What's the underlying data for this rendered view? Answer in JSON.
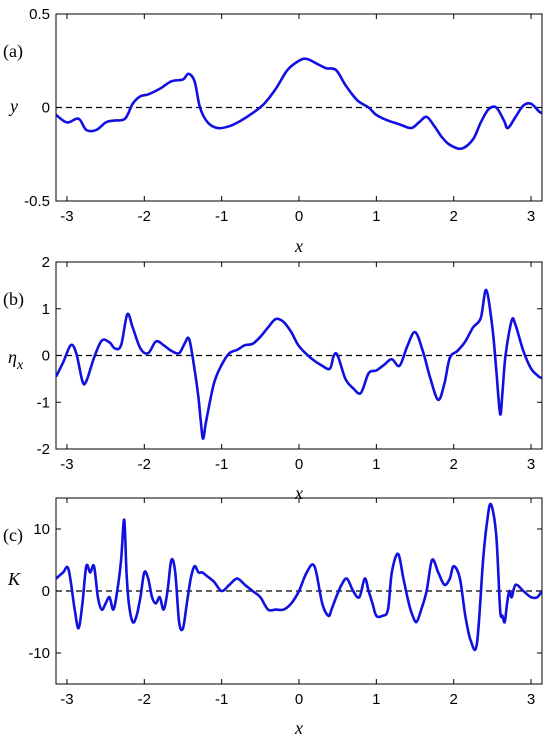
{
  "figure": {
    "panel_tags": [
      "(a)",
      "(b)",
      "(c)"
    ]
  },
  "chart_data": [
    {
      "type": "line",
      "panel": "(a)",
      "xlabel": "x",
      "ylabel": "y",
      "xlim": [
        -3.1416,
        3.1416
      ],
      "ylim": [
        -0.5,
        0.5
      ],
      "xticks": [
        -3,
        -2,
        -1,
        0,
        1,
        2,
        3
      ],
      "xtick_labels": [
        "-3",
        "-2",
        "-1",
        "0",
        "1",
        "2",
        "3"
      ],
      "yticks": [
        -0.5,
        0,
        0.5
      ],
      "ytick_labels": [
        "-0.5",
        "0",
        "0.5"
      ],
      "reference_line": 0,
      "color": "#1010e0",
      "series": [
        {
          "x": [
            -3.14,
            -3.0,
            -2.85,
            -2.75,
            -2.62,
            -2.5,
            -2.4,
            -2.25,
            -2.15,
            -2.05,
            -1.95,
            -1.8,
            -1.65,
            -1.5,
            -1.43,
            -1.35,
            -1.28,
            -1.18,
            -1.05,
            -0.9,
            -0.75,
            -0.6,
            -0.45,
            -0.3,
            -0.15,
            0.0,
            0.1,
            0.25,
            0.35,
            0.48,
            0.6,
            0.75,
            0.9,
            1.0,
            1.15,
            1.3,
            1.45,
            1.55,
            1.65,
            1.75,
            1.85,
            1.95,
            2.1,
            2.25,
            2.35,
            2.45,
            2.55,
            2.65,
            2.7,
            2.8,
            2.9,
            3.0,
            3.1,
            3.14
          ],
          "y": [
            -0.04,
            -0.08,
            -0.06,
            -0.12,
            -0.12,
            -0.08,
            -0.07,
            -0.06,
            0.02,
            0.06,
            0.07,
            0.1,
            0.14,
            0.15,
            0.18,
            0.14,
            0.0,
            -0.08,
            -0.11,
            -0.1,
            -0.07,
            -0.03,
            0.02,
            0.1,
            0.2,
            0.25,
            0.26,
            0.23,
            0.21,
            0.2,
            0.12,
            0.04,
            0.0,
            -0.04,
            -0.07,
            -0.09,
            -0.11,
            -0.08,
            -0.05,
            -0.1,
            -0.16,
            -0.2,
            -0.22,
            -0.17,
            -0.08,
            -0.01,
            0.0,
            -0.07,
            -0.11,
            -0.05,
            0.01,
            0.02,
            -0.02,
            -0.03
          ]
        }
      ]
    },
    {
      "type": "line",
      "panel": "(b)",
      "xlabel": "x",
      "ylabel": "ηx",
      "xlim": [
        -3.1416,
        3.1416
      ],
      "ylim": [
        -2,
        2
      ],
      "xticks": [
        -3,
        -2,
        -1,
        0,
        1,
        2,
        3
      ],
      "xtick_labels": [
        "-3",
        "-2",
        "-1",
        "0",
        "1",
        "2",
        "3"
      ],
      "yticks": [
        -2,
        -1,
        0,
        1,
        2
      ],
      "ytick_labels": [
        "-2",
        "-1",
        "0",
        "1",
        "2"
      ],
      "reference_line": 0,
      "color": "#1010e0",
      "series": [
        {
          "x": [
            -3.14,
            -3.05,
            -2.95,
            -2.88,
            -2.8,
            -2.75,
            -2.65,
            -2.55,
            -2.45,
            -2.38,
            -2.3,
            -2.22,
            -2.15,
            -2.05,
            -1.95,
            -1.85,
            -1.75,
            -1.65,
            -1.55,
            -1.48,
            -1.42,
            -1.35,
            -1.3,
            -1.27,
            -1.24,
            -1.2,
            -1.1,
            -1.0,
            -0.9,
            -0.8,
            -0.7,
            -0.6,
            -0.5,
            -0.4,
            -0.3,
            -0.2,
            -0.1,
            0.0,
            0.15,
            0.3,
            0.4,
            0.45,
            0.5,
            0.6,
            0.7,
            0.8,
            0.9,
            1.0,
            1.1,
            1.2,
            1.3,
            1.4,
            1.5,
            1.6,
            1.7,
            1.8,
            1.88,
            1.95,
            2.05,
            2.15,
            2.25,
            2.35,
            2.42,
            2.5,
            2.55,
            2.6,
            2.63,
            2.67,
            2.75,
            2.8,
            2.9,
            3.0,
            3.1,
            3.14
          ],
          "y": [
            -0.45,
            -0.15,
            0.22,
            0.05,
            -0.55,
            -0.55,
            -0.05,
            0.32,
            0.28,
            0.15,
            0.22,
            0.88,
            0.6,
            0.15,
            0.05,
            0.3,
            0.22,
            0.1,
            0.05,
            0.25,
            0.35,
            -0.3,
            -0.9,
            -1.4,
            -1.78,
            -1.4,
            -0.6,
            -0.2,
            0.05,
            0.12,
            0.22,
            0.25,
            0.4,
            0.6,
            0.78,
            0.72,
            0.5,
            0.2,
            -0.05,
            -0.22,
            -0.28,
            0.0,
            0.0,
            -0.5,
            -0.7,
            -0.8,
            -0.38,
            -0.32,
            -0.2,
            -0.08,
            -0.22,
            0.2,
            0.5,
            0.1,
            -0.5,
            -0.95,
            -0.6,
            -0.05,
            0.1,
            0.3,
            0.6,
            0.8,
            1.4,
            0.6,
            -0.3,
            -1.25,
            -0.8,
            0.0,
            0.75,
            0.65,
            0.1,
            -0.28,
            -0.45,
            -0.48
          ]
        }
      ]
    },
    {
      "type": "line",
      "panel": "(c)",
      "xlabel": "x",
      "ylabel": "K",
      "xlim": [
        -3.1416,
        3.1416
      ],
      "ylim": [
        -15,
        15
      ],
      "xticks": [
        -3,
        -2,
        -1,
        0,
        1,
        2,
        3
      ],
      "xtick_labels": [
        "-3",
        "-2",
        "-1",
        "0",
        "1",
        "2",
        "3"
      ],
      "yticks": [
        -10,
        0,
        10
      ],
      "ytick_labels": [
        "-10",
        "0",
        "10"
      ],
      "reference_line": 0,
      "color": "#1010e0",
      "series": [
        {
          "x": [
            -3.14,
            -3.05,
            -2.98,
            -2.9,
            -2.85,
            -2.8,
            -2.75,
            -2.7,
            -2.65,
            -2.6,
            -2.55,
            -2.5,
            -2.45,
            -2.4,
            -2.35,
            -2.3,
            -2.26,
            -2.23,
            -2.2,
            -2.15,
            -2.1,
            -2.05,
            -2.0,
            -1.95,
            -1.9,
            -1.85,
            -1.8,
            -1.75,
            -1.7,
            -1.65,
            -1.6,
            -1.55,
            -1.5,
            -1.45,
            -1.4,
            -1.35,
            -1.3,
            -1.25,
            -1.2,
            -1.1,
            -1.0,
            -0.9,
            -0.8,
            -0.7,
            -0.6,
            -0.5,
            -0.4,
            -0.3,
            -0.2,
            -0.1,
            0.0,
            0.1,
            0.2,
            0.3,
            0.38,
            0.42,
            0.48,
            0.55,
            0.62,
            0.7,
            0.78,
            0.85,
            0.9,
            0.95,
            1.0,
            1.08,
            1.15,
            1.2,
            1.28,
            1.35,
            1.42,
            1.47,
            1.52,
            1.58,
            1.65,
            1.72,
            1.8,
            1.88,
            1.95,
            2.0,
            2.08,
            2.15,
            2.22,
            2.3,
            2.38,
            2.43,
            2.48,
            2.55,
            2.6,
            2.63,
            2.66,
            2.69,
            2.72,
            2.75,
            2.8,
            2.9,
            3.0,
            3.08,
            3.14
          ],
          "y": [
            2,
            3,
            3.5,
            -3,
            -6,
            -2,
            4,
            3,
            4,
            -1,
            -3,
            -2,
            -1,
            -3,
            0,
            5,
            11.5,
            3,
            -2,
            -5,
            -4,
            -1,
            3,
            2,
            -1,
            -2,
            -1,
            -3,
            0,
            5,
            3,
            -5,
            -6,
            -2,
            2,
            4,
            3,
            3,
            2.5,
            1.5,
            0,
            1,
            2,
            1,
            0,
            -1,
            -3,
            -3,
            -3,
            -2,
            0,
            3,
            4,
            -2,
            -4,
            -3,
            -1,
            1,
            2,
            0,
            -1,
            2,
            0,
            -2,
            -4,
            -4,
            -3,
            3,
            6,
            2,
            -2,
            -4,
            -5,
            -3,
            0,
            5,
            3,
            1,
            2,
            4,
            2,
            -4,
            -8,
            -8.5,
            5,
            11,
            14,
            9,
            -3,
            -4,
            -5,
            -2,
            0,
            -1,
            1,
            0,
            -1,
            -1,
            0
          ]
        }
      ]
    }
  ]
}
